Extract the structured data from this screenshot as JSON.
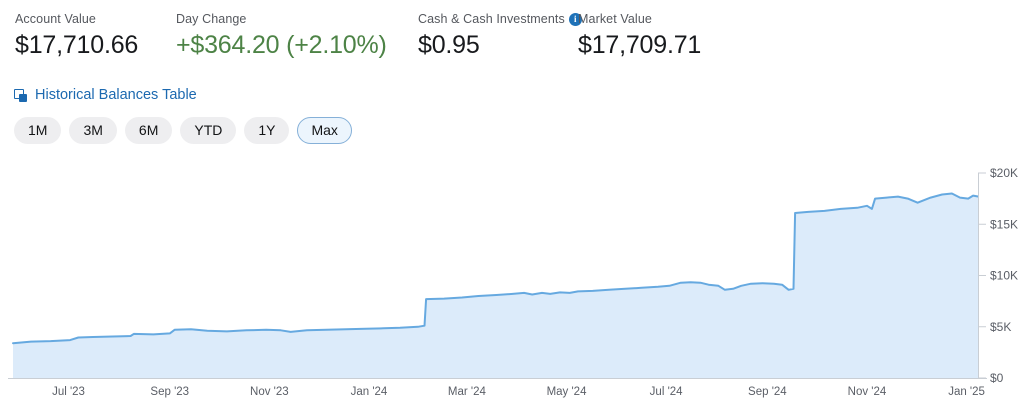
{
  "stats": [
    {
      "label": "Account Value",
      "value": "$17,710.66"
    },
    {
      "label": "Day Change",
      "value": "+$364.20 (+2.10%)"
    },
    {
      "label": "Cash & Cash Investments",
      "value": "$0.95",
      "has_info_icon": true
    },
    {
      "label": "Market Value",
      "value": "$17,709.71"
    }
  ],
  "link": {
    "label": "Historical Balances Table"
  },
  "range_buttons": [
    {
      "label": "1M",
      "selected": false
    },
    {
      "label": "3M",
      "selected": false
    },
    {
      "label": "6M",
      "selected": false
    },
    {
      "label": "YTD",
      "selected": false
    },
    {
      "label": "1Y",
      "selected": false
    },
    {
      "label": "Max",
      "selected": true
    }
  ],
  "icons": {
    "info_icon": "i-in-filled-circle",
    "table_window_icon": "overlapping-squares"
  },
  "colors": {
    "line": "#66a9e0",
    "fill": "#dcebfa",
    "axis": "#c9ced4",
    "tick_label": "#5a5e66",
    "day_change_green": "#4d8346",
    "link_blue": "#1c69b0",
    "info_blue": "#1f72b8",
    "pill_selected_bg": "#ecf5fd",
    "pill_selected_border": "#85b0d8"
  },
  "chart_data": {
    "type": "area",
    "title": "",
    "xlabel": "",
    "ylabel": "",
    "ylim": [
      0,
      20000
    ],
    "grid": false,
    "legend": false,
    "y_ticks": [
      {
        "value": 0,
        "label": "$0"
      },
      {
        "value": 5000,
        "label": "$5K"
      },
      {
        "value": 10000,
        "label": "$10K"
      },
      {
        "value": 15000,
        "label": "$15K"
      },
      {
        "value": 20000,
        "label": "$20K"
      }
    ],
    "x_ticks": [
      {
        "date": "2023-07-01",
        "label": "Jul '23"
      },
      {
        "date": "2023-09-01",
        "label": "Sep '23"
      },
      {
        "date": "2023-11-01",
        "label": "Nov '23"
      },
      {
        "date": "2024-01-01",
        "label": "Jan '24"
      },
      {
        "date": "2024-03-01",
        "label": "Mar '24"
      },
      {
        "date": "2024-05-01",
        "label": "May '24"
      },
      {
        "date": "2024-07-01",
        "label": "Jul '24"
      },
      {
        "date": "2024-09-01",
        "label": "Sep '24"
      },
      {
        "date": "2024-11-01",
        "label": "Nov '24"
      },
      {
        "date": "2025-01-01",
        "label": "Jan '25"
      }
    ],
    "series": [
      {
        "name": "Account Value",
        "points": [
          [
            "2023-05-28",
            3400
          ],
          [
            "2023-06-08",
            3550
          ],
          [
            "2023-06-20",
            3600
          ],
          [
            "2023-07-02",
            3700
          ],
          [
            "2023-07-07",
            3950
          ],
          [
            "2023-07-16",
            4000
          ],
          [
            "2023-07-28",
            4050
          ],
          [
            "2023-08-08",
            4100
          ],
          [
            "2023-08-10",
            4300
          ],
          [
            "2023-08-22",
            4250
          ],
          [
            "2023-09-01",
            4350
          ],
          [
            "2023-09-04",
            4700
          ],
          [
            "2023-09-14",
            4750
          ],
          [
            "2023-09-24",
            4600
          ],
          [
            "2023-10-06",
            4550
          ],
          [
            "2023-10-18",
            4650
          ],
          [
            "2023-10-30",
            4700
          ],
          [
            "2023-11-08",
            4650
          ],
          [
            "2023-11-14",
            4500
          ],
          [
            "2023-11-24",
            4650
          ],
          [
            "2023-12-06",
            4700
          ],
          [
            "2023-12-18",
            4750
          ],
          [
            "2023-12-30",
            4800
          ],
          [
            "2024-01-10",
            4850
          ],
          [
            "2024-01-20",
            4900
          ],
          [
            "2024-01-31",
            5000
          ],
          [
            "2024-02-04",
            5100
          ],
          [
            "2024-02-05",
            7700
          ],
          [
            "2024-02-16",
            7750
          ],
          [
            "2024-02-27",
            7850
          ],
          [
            "2024-03-08",
            8000
          ],
          [
            "2024-03-19",
            8100
          ],
          [
            "2024-03-29",
            8200
          ],
          [
            "2024-04-05",
            8300
          ],
          [
            "2024-04-10",
            8150
          ],
          [
            "2024-04-16",
            8300
          ],
          [
            "2024-04-21",
            8200
          ],
          [
            "2024-04-27",
            8350
          ],
          [
            "2024-05-03",
            8300
          ],
          [
            "2024-05-08",
            8450
          ],
          [
            "2024-05-17",
            8500
          ],
          [
            "2024-05-27",
            8600
          ],
          [
            "2024-06-06",
            8700
          ],
          [
            "2024-06-16",
            8800
          ],
          [
            "2024-06-26",
            8900
          ],
          [
            "2024-07-03",
            9000
          ],
          [
            "2024-07-10",
            9300
          ],
          [
            "2024-07-16",
            9350
          ],
          [
            "2024-07-22",
            9300
          ],
          [
            "2024-07-27",
            9100
          ],
          [
            "2024-08-02",
            9000
          ],
          [
            "2024-08-06",
            8600
          ],
          [
            "2024-08-11",
            8700
          ],
          [
            "2024-08-16",
            9000
          ],
          [
            "2024-08-22",
            9200
          ],
          [
            "2024-08-29",
            9250
          ],
          [
            "2024-09-05",
            9200
          ],
          [
            "2024-09-10",
            9100
          ],
          [
            "2024-09-14",
            8600
          ],
          [
            "2024-09-17",
            8700
          ],
          [
            "2024-09-18",
            16100
          ],
          [
            "2024-09-26",
            16200
          ],
          [
            "2024-10-06",
            16300
          ],
          [
            "2024-10-16",
            16500
          ],
          [
            "2024-10-26",
            16600
          ],
          [
            "2024-11-01",
            16800
          ],
          [
            "2024-11-04",
            16500
          ],
          [
            "2024-11-06",
            17500
          ],
          [
            "2024-11-13",
            17600
          ],
          [
            "2024-11-20",
            17700
          ],
          [
            "2024-11-26",
            17500
          ],
          [
            "2024-12-02",
            17100
          ],
          [
            "2024-12-10",
            17600
          ],
          [
            "2024-12-17",
            17900
          ],
          [
            "2024-12-23",
            18000
          ],
          [
            "2024-12-28",
            17600
          ],
          [
            "2025-01-02",
            17500
          ],
          [
            "2025-01-05",
            17800
          ],
          [
            "2025-01-08",
            17710
          ]
        ]
      }
    ]
  }
}
